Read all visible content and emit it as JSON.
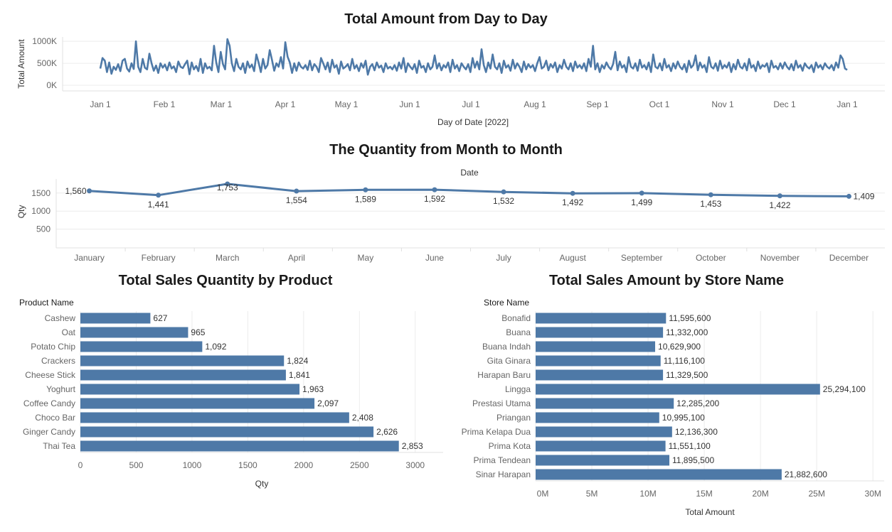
{
  "chart_data": [
    {
      "type": "line",
      "title": "Total Amount from Day to Day",
      "xlabel": "Day of Date [2022]",
      "ylabel": "Total Amount",
      "ylim": [
        0,
        1100000
      ],
      "y_ticks": [
        "0K",
        "500K",
        "1000K"
      ],
      "x_ticks": [
        "Jan 1",
        "Feb 1",
        "Mar 1",
        "Apr 1",
        "May 1",
        "Jun 1",
        "Jul 1",
        "Aug 1",
        "Sep 1",
        "Oct 1",
        "Nov 1",
        "Dec 1",
        "Jan 1"
      ],
      "series": [
        {
          "values": [
            380000,
            620000,
            560000,
            300000,
            520000,
            260000,
            420000,
            350000,
            480000,
            320000,
            560000,
            600000,
            380000,
            310000,
            500000,
            370000,
            1000000,
            420000,
            300000,
            600000,
            400000,
            360000,
            720000,
            500000,
            330000,
            450000,
            280000,
            500000,
            400000,
            470000,
            340000,
            520000,
            380000,
            430000,
            300000,
            540000,
            420000,
            390000,
            480000,
            560000,
            250000,
            520000,
            360000,
            440000,
            320000,
            600000,
            280000,
            500000,
            380000,
            420000,
            340000,
            900000,
            520000,
            300000,
            760000,
            480000,
            360000,
            1050000,
            900000,
            500000,
            320000,
            600000,
            420000,
            360000,
            500000,
            280000,
            540000,
            400000,
            470000,
            320000,
            700000,
            520000,
            300000,
            600000,
            380000,
            460000,
            800000,
            580000,
            330000,
            500000,
            420000,
            640000,
            380000,
            980000,
            650000,
            520000,
            280000,
            500000,
            330000,
            520000,
            420000,
            380000,
            460000,
            350000,
            560000,
            340000,
            480000,
            420000,
            300000,
            620000,
            500000,
            360000,
            520000,
            300000,
            580000,
            400000,
            460000,
            260000,
            540000,
            380000,
            420000,
            480000,
            340000,
            600000,
            380000,
            460000,
            320000,
            500000,
            400000,
            560000,
            240000,
            420000,
            480000,
            340000,
            520000,
            400000,
            450000,
            300000,
            500000,
            380000,
            420000,
            360000,
            460000,
            330000,
            520000,
            380000,
            620000,
            300000,
            500000,
            420000,
            360000,
            480000,
            280000,
            560000,
            400000,
            440000,
            300000,
            500000,
            360000,
            420000,
            680000,
            380000,
            500000,
            340000,
            460000,
            400000,
            520000,
            300000,
            580000,
            380000,
            460000,
            320000,
            500000,
            420000,
            360000,
            480000,
            300000,
            620000,
            400000,
            540000,
            360000,
            820000,
            460000,
            300000,
            520000,
            380000,
            700000,
            420000,
            360000,
            500000,
            280000,
            560000,
            400000,
            460000,
            330000,
            580000,
            380000,
            500000,
            420000,
            300000,
            540000,
            360000,
            480000,
            400000,
            460000,
            320000,
            500000,
            640000,
            380000,
            420000,
            560000,
            340000,
            480000,
            400000,
            520000,
            300000,
            460000,
            380000,
            580000,
            420000,
            360000,
            500000,
            320000,
            540000,
            400000,
            460000,
            380000,
            500000,
            320000,
            600000,
            420000,
            900000,
            360000,
            500000,
            300000,
            460000,
            380000,
            520000,
            420000,
            360000,
            480000,
            760000,
            340000,
            540000,
            400000,
            460000,
            300000,
            640000,
            420000,
            380000,
            500000,
            330000,
            580000,
            400000,
            460000,
            360000,
            520000,
            300000,
            700000,
            420000,
            380000,
            500000,
            340000,
            600000,
            400000,
            460000,
            320000,
            500000,
            380000,
            540000,
            420000,
            360000,
            480000,
            300000,
            560000,
            400000,
            460000,
            680000,
            340000,
            520000,
            400000,
            460000,
            300000,
            640000,
            420000,
            380000,
            500000,
            330000,
            560000,
            380000,
            460000,
            400000,
            520000,
            300000,
            480000,
            360000,
            580000,
            420000,
            380000,
            500000,
            340000,
            600000,
            400000,
            460000,
            320000,
            540000,
            380000,
            460000,
            420000,
            500000,
            300000,
            560000,
            400000,
            440000,
            360000,
            500000,
            380000,
            520000,
            420000,
            360000,
            480000,
            340000,
            560000,
            400000,
            460000,
            330000,
            500000,
            420000,
            380000,
            460000,
            300000,
            520000,
            400000,
            460000,
            360000,
            500000,
            420000,
            380000,
            460000,
            340000,
            520000,
            400000,
            680000,
            600000,
            380000,
            350000
          ],
          "color": "#4e79a7"
        }
      ]
    },
    {
      "type": "line",
      "title": "The Quantity from Month to Month",
      "xlabel": "Date",
      "ylabel": "Qty",
      "ylim": [
        0,
        2000
      ],
      "y_ticks": [
        "500",
        "1000",
        "1500"
      ],
      "categories": [
        "January",
        "February",
        "March",
        "April",
        "May",
        "June",
        "July",
        "August",
        "September",
        "October",
        "November",
        "December"
      ],
      "values": [
        1560,
        1441,
        1753,
        1554,
        1589,
        1592,
        1532,
        1492,
        1499,
        1453,
        1422,
        1409
      ],
      "data_labels": [
        "1,560",
        "1,441",
        "1,753",
        "1,554",
        "1,589",
        "1,592",
        "1,532",
        "1,492",
        "1,499",
        "1,453",
        "1,422",
        "1,409"
      ]
    },
    {
      "type": "bar",
      "title": "Total Sales Quantity by Product",
      "category_header": "Product Name",
      "xlabel": "Qty",
      "xlim": [
        0,
        3250
      ],
      "x_ticks": [
        "0",
        "500",
        "1000",
        "1500",
        "2000",
        "2500",
        "3000"
      ],
      "categories": [
        "Cashew",
        "Oat",
        "Potato Chip",
        "Crackers",
        "Cheese Stick",
        "Yoghurt",
        "Coffee Candy",
        "Choco Bar",
        "Ginger Candy",
        "Thai Tea"
      ],
      "values": [
        627,
        965,
        1092,
        1824,
        1841,
        1963,
        2097,
        2408,
        2626,
        2853
      ],
      "data_labels": [
        "627",
        "965",
        "1,092",
        "1,824",
        "1,841",
        "1,963",
        "2,097",
        "2,408",
        "2,626",
        "2,853"
      ]
    },
    {
      "type": "bar",
      "title": "Total Sales Amount by Store Name",
      "category_header": "Store Name",
      "xlabel": "Total Amount",
      "xlim": [
        0,
        31000000
      ],
      "x_ticks": [
        "0M",
        "5M",
        "10M",
        "15M",
        "20M",
        "25M",
        "30M"
      ],
      "categories": [
        "Bonafid",
        "Buana",
        "Buana Indah",
        "Gita Ginara",
        "Harapan Baru",
        "Lingga",
        "Prestasi Utama",
        "Priangan",
        "Prima Kelapa Dua",
        "Prima Kota",
        "Prima Tendean",
        "Sinar Harapan"
      ],
      "values": [
        11595600,
        11332000,
        10629900,
        11116100,
        11329500,
        25294100,
        12285200,
        10995100,
        12136300,
        11551100,
        11895500,
        21882600
      ],
      "data_labels": [
        "11,595,600",
        "11,332,000",
        "10,629,900",
        "11,116,100",
        "11,329,500",
        "25,294,100",
        "12,285,200",
        "10,995,100",
        "12,136,300",
        "11,551,100",
        "11,895,500",
        "21,882,600"
      ]
    }
  ],
  "colors": {
    "series": "#4e79a7",
    "grid": "#ececec",
    "axis_text": "#666666"
  }
}
